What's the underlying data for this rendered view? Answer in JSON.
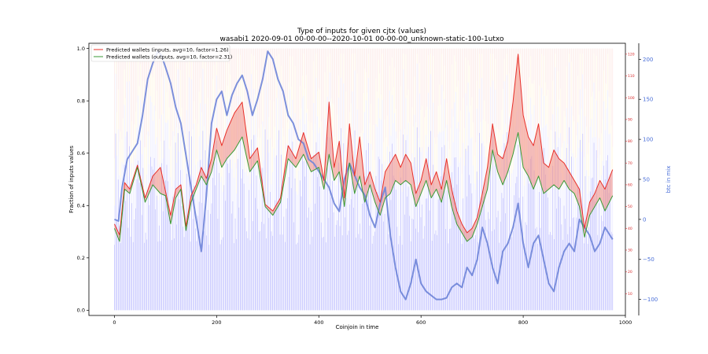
{
  "chart_data": {
    "type": "line",
    "title": "Type of inputs for given cjtx (values)",
    "subtitle": "wasabi1 2020-09-01 00-00-00--2020-10-01 00-00-00_unknown-static-100-1utxo",
    "xlabel": "Coinjoin in time",
    "ylabel": "Fraction of inputs values",
    "y2label": "btc in mix",
    "xlim": [
      -50,
      1000
    ],
    "ylim": [
      -0.02,
      1.02
    ],
    "y_wallets_lim": [
      0,
      125
    ],
    "y_btc_lim": [
      -120,
      220
    ],
    "x_ticks": [
      "0",
      "200",
      "400",
      "600",
      "800",
      "1000"
    ],
    "y_ticks": [
      "0.0",
      "0.2",
      "0.4",
      "0.6",
      "0.8",
      "1.0"
    ],
    "y_wallets_ticks": [
      "10",
      "20",
      "30",
      "40",
      "50",
      "60",
      "70",
      "80",
      "90",
      "100",
      "110",
      "120"
    ],
    "y_btc_ticks": [
      "−100",
      "−50",
      "0",
      "50",
      "100",
      "150",
      "200"
    ],
    "legend": {
      "position": "top-left"
    },
    "series": [
      {
        "name": "Predicted wallets (inputs, avg=10, factor=1.26)",
        "color": "#e8302a",
        "axis": "wallets",
        "x": [
          0,
          10,
          20,
          30,
          45,
          60,
          75,
          90,
          100,
          110,
          120,
          130,
          140,
          150,
          160,
          170,
          180,
          190,
          200,
          210,
          220,
          235,
          250,
          265,
          280,
          295,
          310,
          325,
          340,
          355,
          370,
          385,
          400,
          410,
          420,
          430,
          440,
          450,
          460,
          470,
          480,
          490,
          500,
          510,
          520,
          530,
          540,
          550,
          560,
          570,
          580,
          590,
          600,
          610,
          620,
          630,
          640,
          650,
          660,
          670,
          680,
          690,
          700,
          710,
          720,
          730,
          740,
          750,
          760,
          770,
          780,
          790,
          800,
          810,
          820,
          830,
          840,
          850,
          860,
          870,
          880,
          890,
          900,
          910,
          920,
          930,
          940,
          950,
          960,
          975
        ],
        "y": [
          42,
          37,
          61,
          58,
          69,
          54,
          64,
          68,
          57,
          46,
          58,
          60,
          41,
          55,
          60,
          68,
          63,
          72,
          86,
          78,
          85,
          93,
          98,
          72,
          77,
          51,
          48,
          54,
          78,
          72,
          84,
          72,
          75,
          62,
          98,
          68,
          80,
          54,
          88,
          64,
          82,
          60,
          66,
          58,
          52,
          66,
          70,
          74,
          68,
          74,
          70,
          56,
          62,
          72,
          60,
          66,
          58,
          72,
          58,
          48,
          42,
          38,
          40,
          45,
          56,
          68,
          88,
          74,
          72,
          80,
          98,
          120,
          92,
          82,
          78,
          88,
          70,
          68,
          76,
          72,
          70,
          66,
          62,
          58,
          40,
          52,
          56,
          62,
          58,
          67
        ]
      },
      {
        "name": "Predicted wallets (outputs, avg=10, factor=2.31)",
        "color": "#3a9a35",
        "axis": "wallets",
        "x": [
          0,
          10,
          20,
          30,
          45,
          60,
          75,
          90,
          100,
          110,
          120,
          130,
          140,
          150,
          160,
          170,
          180,
          190,
          200,
          210,
          220,
          235,
          250,
          265,
          280,
          295,
          310,
          325,
          340,
          355,
          370,
          385,
          400,
          410,
          420,
          430,
          440,
          450,
          460,
          470,
          480,
          490,
          500,
          510,
          520,
          530,
          540,
          550,
          560,
          570,
          580,
          590,
          600,
          610,
          620,
          630,
          640,
          650,
          660,
          670,
          680,
          690,
          700,
          710,
          720,
          730,
          740,
          750,
          760,
          770,
          780,
          790,
          800,
          810,
          820,
          830,
          840,
          850,
          860,
          870,
          880,
          890,
          900,
          910,
          920,
          930,
          940,
          950,
          960,
          975
        ],
        "y": [
          40,
          34,
          58,
          56,
          68,
          52,
          60,
          56,
          55,
          42,
          54,
          58,
          39,
          52,
          58,
          64,
          60,
          66,
          76,
          68,
          72,
          76,
          82,
          66,
          71,
          50,
          46,
          52,
          72,
          68,
          74,
          66,
          68,
          58,
          74,
          62,
          66,
          50,
          70,
          56,
          64,
          52,
          60,
          52,
          46,
          54,
          56,
          62,
          60,
          62,
          60,
          50,
          56,
          62,
          54,
          58,
          52,
          62,
          50,
          42,
          38,
          34,
          36,
          42,
          50,
          58,
          76,
          66,
          60,
          66,
          74,
          84,
          68,
          64,
          58,
          64,
          56,
          58,
          60,
          58,
          62,
          58,
          56,
          50,
          36,
          46,
          50,
          54,
          48,
          55
        ]
      },
      {
        "name": "btc in mix",
        "color": "#6e84d8",
        "axis": "btc",
        "x": [
          0,
          8,
          15,
          25,
          35,
          45,
          55,
          65,
          75,
          85,
          92,
          100,
          110,
          120,
          130,
          140,
          150,
          160,
          170,
          180,
          190,
          200,
          210,
          220,
          230,
          240,
          250,
          260,
          270,
          280,
          290,
          300,
          310,
          320,
          330,
          340,
          350,
          360,
          370,
          380,
          390,
          400,
          410,
          420,
          430,
          440,
          450,
          460,
          470,
          480,
          490,
          500,
          510,
          520,
          530,
          540,
          550,
          560,
          570,
          580,
          590,
          600,
          610,
          620,
          630,
          640,
          650,
          660,
          670,
          680,
          690,
          700,
          710,
          720,
          730,
          740,
          750,
          760,
          770,
          780,
          790,
          800,
          810,
          820,
          830,
          840,
          850,
          860,
          870,
          880,
          890,
          900,
          910,
          920,
          930,
          940,
          950,
          960,
          970,
          975
        ],
        "y": [
          0,
          -2,
          40,
          75,
          85,
          95,
          130,
          175,
          195,
          210,
          205,
          190,
          170,
          140,
          120,
          80,
          40,
          0,
          -40,
          30,
          120,
          150,
          160,
          130,
          155,
          170,
          180,
          160,
          130,
          150,
          175,
          210,
          200,
          175,
          160,
          130,
          120,
          100,
          95,
          75,
          70,
          60,
          50,
          40,
          20,
          10,
          50,
          70,
          55,
          40,
          30,
          5,
          -10,
          20,
          40,
          -20,
          -60,
          -90,
          -100,
          -80,
          -50,
          -80,
          -90,
          -95,
          -100,
          -100,
          -98,
          -85,
          -80,
          -85,
          -60,
          -70,
          -50,
          -10,
          -30,
          -60,
          -80,
          -40,
          -30,
          -10,
          20,
          -30,
          -60,
          -30,
          -20,
          -50,
          -80,
          -90,
          -60,
          -40,
          -30,
          -40,
          0,
          -10,
          -20,
          -40,
          -30,
          -10,
          -20,
          -25
        ]
      }
    ]
  }
}
